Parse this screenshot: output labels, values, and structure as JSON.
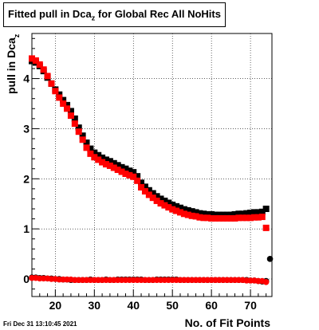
{
  "title": {
    "prefix": "Fitted pull in Dca",
    "subscript": "z",
    "suffix": " for Global Rec All NoHits"
  },
  "footer": {
    "date": "Fri Dec 31 13:10:45 2021"
  },
  "chart_data": {
    "type": "scatter",
    "xlabel": "No. of Fit Points",
    "ylabel_main": "pull in Dca",
    "ylabel_sub": "z",
    "xlim": [
      14,
      75.5
    ],
    "ylim": [
      -0.35,
      4.9
    ],
    "x_ticks": [
      20,
      30,
      40,
      50,
      60,
      70
    ],
    "y_ticks": [
      0,
      1,
      2,
      3,
      4
    ],
    "series": [
      {
        "color": "#000000",
        "marker": "square",
        "x": [
          14,
          15,
          16,
          17,
          18,
          19,
          20,
          21,
          22,
          23,
          24,
          25,
          26,
          27,
          28,
          29,
          30,
          31,
          32,
          33,
          34,
          35,
          36,
          37,
          38,
          39,
          40,
          41,
          42,
          43,
          44,
          45,
          46,
          47,
          48,
          49,
          50,
          51,
          52,
          53,
          54,
          55,
          56,
          57,
          58,
          59,
          60,
          61,
          62,
          63,
          64,
          65,
          66,
          67,
          68,
          69,
          70,
          71,
          72,
          73,
          74
        ],
        "y": [
          4.35,
          4.32,
          4.25,
          4.15,
          4.02,
          3.9,
          3.78,
          3.68,
          3.57,
          3.47,
          3.35,
          3.2,
          3.02,
          2.86,
          2.72,
          2.6,
          2.52,
          2.47,
          2.42,
          2.38,
          2.35,
          2.31,
          2.27,
          2.23,
          2.2,
          2.16,
          2.13,
          2.05,
          1.92,
          1.84,
          1.77,
          1.71,
          1.65,
          1.6,
          1.56,
          1.52,
          1.48,
          1.45,
          1.42,
          1.39,
          1.37,
          1.35,
          1.33,
          1.31,
          1.3,
          1.29,
          1.29,
          1.28,
          1.28,
          1.28,
          1.28,
          1.28,
          1.29,
          1.3,
          1.3,
          1.31,
          1.32,
          1.33,
          1.33,
          1.34,
          1.4
        ]
      },
      {
        "color": "#ff0000",
        "marker": "square",
        "x": [
          14,
          15,
          16,
          17,
          18,
          19,
          20,
          21,
          22,
          23,
          24,
          25,
          26,
          27,
          28,
          29,
          30,
          31,
          32,
          33,
          34,
          35,
          36,
          37,
          38,
          39,
          40,
          41,
          42,
          43,
          44,
          45,
          46,
          47,
          48,
          49,
          50,
          51,
          52,
          53,
          54,
          55,
          56,
          57,
          58,
          59,
          60,
          61,
          62,
          63,
          64,
          65,
          66,
          67,
          68,
          69,
          70,
          71,
          72,
          73,
          74
        ],
        "y": [
          4.4,
          4.36,
          4.28,
          4.18,
          4.05,
          3.9,
          3.75,
          3.62,
          3.5,
          3.4,
          3.26,
          3.1,
          2.94,
          2.78,
          2.62,
          2.5,
          2.43,
          2.38,
          2.33,
          2.29,
          2.26,
          2.22,
          2.18,
          2.14,
          2.1,
          2.07,
          2.04,
          1.96,
          1.83,
          1.75,
          1.68,
          1.62,
          1.56,
          1.51,
          1.47,
          1.43,
          1.39,
          1.36,
          1.33,
          1.3,
          1.28,
          1.26,
          1.25,
          1.23,
          1.22,
          1.22,
          1.21,
          1.21,
          1.21,
          1.21,
          1.21,
          1.21,
          1.21,
          1.22,
          1.22,
          1.22,
          1.22,
          1.23,
          1.23,
          1.24,
          1.02
        ]
      },
      {
        "color": "#000000",
        "marker": "circle",
        "x": [
          14,
          15,
          16,
          17,
          18,
          19,
          20,
          21,
          22,
          23,
          24,
          25,
          26,
          27,
          28,
          29,
          30,
          31,
          32,
          33,
          34,
          35,
          36,
          37,
          38,
          39,
          40,
          41,
          42,
          43,
          44,
          45,
          46,
          47,
          48,
          49,
          50,
          51,
          52,
          53,
          54,
          55,
          56,
          57,
          58,
          59,
          60,
          61,
          62,
          63,
          64,
          65,
          66,
          67,
          68,
          69,
          70,
          71,
          72,
          73,
          74,
          75
        ],
        "y": [
          0.03,
          0.03,
          0.02,
          0.02,
          0.01,
          0.01,
          0.0,
          0.0,
          -0.01,
          -0.01,
          -0.02,
          -0.02,
          -0.02,
          -0.02,
          -0.02,
          -0.01,
          -0.02,
          -0.02,
          -0.02,
          -0.01,
          -0.02,
          -0.02,
          -0.01,
          -0.01,
          -0.01,
          -0.01,
          -0.01,
          -0.01,
          -0.01,
          -0.02,
          -0.02,
          -0.02,
          -0.01,
          -0.01,
          -0.01,
          -0.01,
          -0.01,
          -0.01,
          -0.02,
          -0.02,
          -0.02,
          -0.02,
          -0.02,
          -0.02,
          -0.02,
          -0.02,
          -0.02,
          -0.02,
          -0.02,
          -0.02,
          -0.02,
          -0.02,
          -0.02,
          -0.02,
          -0.02,
          -0.02,
          -0.03,
          -0.03,
          -0.04,
          -0.05,
          -0.04,
          0.4
        ]
      },
      {
        "color": "#ff0000",
        "marker": "circle",
        "x": [
          14,
          15,
          16,
          17,
          18,
          19,
          20,
          21,
          22,
          23,
          24,
          25,
          26,
          27,
          28,
          29,
          30,
          31,
          32,
          33,
          34,
          35,
          36,
          37,
          38,
          39,
          40,
          41,
          42,
          43,
          44,
          45,
          46,
          47,
          48,
          49,
          50,
          51,
          52,
          53,
          54,
          55,
          56,
          57,
          58,
          59,
          60,
          61,
          62,
          63,
          64,
          65,
          66,
          67,
          68,
          69,
          70,
          71,
          72,
          73,
          74
        ],
        "y": [
          0.02,
          0.02,
          0.01,
          0.01,
          0.01,
          0.0,
          0.0,
          -0.01,
          -0.01,
          -0.01,
          -0.01,
          -0.02,
          -0.02,
          -0.02,
          -0.02,
          -0.02,
          -0.02,
          -0.02,
          -0.02,
          -0.02,
          -0.02,
          -0.02,
          -0.02,
          -0.02,
          -0.02,
          -0.02,
          -0.02,
          -0.02,
          -0.02,
          -0.02,
          -0.02,
          -0.02,
          -0.02,
          -0.02,
          -0.02,
          -0.02,
          -0.02,
          -0.02,
          -0.02,
          -0.02,
          -0.02,
          -0.02,
          -0.02,
          -0.02,
          -0.02,
          -0.02,
          -0.02,
          -0.02,
          -0.02,
          -0.02,
          -0.02,
          -0.02,
          -0.02,
          -0.02,
          -0.02,
          -0.03,
          -0.03,
          -0.03,
          -0.04,
          -0.04,
          -0.06
        ]
      }
    ]
  }
}
